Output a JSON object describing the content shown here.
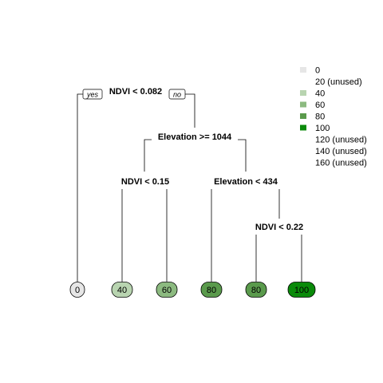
{
  "tree": {
    "branch_tags": {
      "left": "yes",
      "right": "no"
    },
    "splits": [
      {
        "id": "root",
        "label": "NDVI < 0.082"
      },
      {
        "id": "elev1044",
        "label": "Elevation >= 1044"
      },
      {
        "id": "ndvi015",
        "label": "NDVI < 0.15"
      },
      {
        "id": "elev434",
        "label": "Elevation < 434"
      },
      {
        "id": "ndvi022",
        "label": "NDVI < 0.22"
      }
    ],
    "leaves": [
      {
        "label": "0",
        "value": 0,
        "color": "#e6e6e6"
      },
      {
        "label": "40",
        "value": 40,
        "color": "#b8d4b0"
      },
      {
        "label": "60",
        "value": 60,
        "color": "#8cba80"
      },
      {
        "label": "80",
        "value": 80,
        "color": "#5a9a4c"
      },
      {
        "label": "80",
        "value": 80,
        "color": "#5a9a4c"
      },
      {
        "label": "100",
        "value": 100,
        "color": "#0a8a0a"
      }
    ]
  },
  "legend": [
    {
      "label": "0",
      "color": "#e6e6e6",
      "used": true
    },
    {
      "label": "20 (unused)",
      "color": "",
      "used": false
    },
    {
      "label": "40",
      "color": "#b8d4b0",
      "used": true
    },
    {
      "label": "60",
      "color": "#8cba80",
      "used": true
    },
    {
      "label": "80",
      "color": "#5a9a4c",
      "used": true
    },
    {
      "label": "100",
      "color": "#0a8a0a",
      "used": true
    },
    {
      "label": "120 (unused)",
      "color": "",
      "used": false
    },
    {
      "label": "140 (unused)",
      "color": "",
      "used": false
    },
    {
      "label": "160 (unused)",
      "color": "",
      "used": false
    }
  ]
}
